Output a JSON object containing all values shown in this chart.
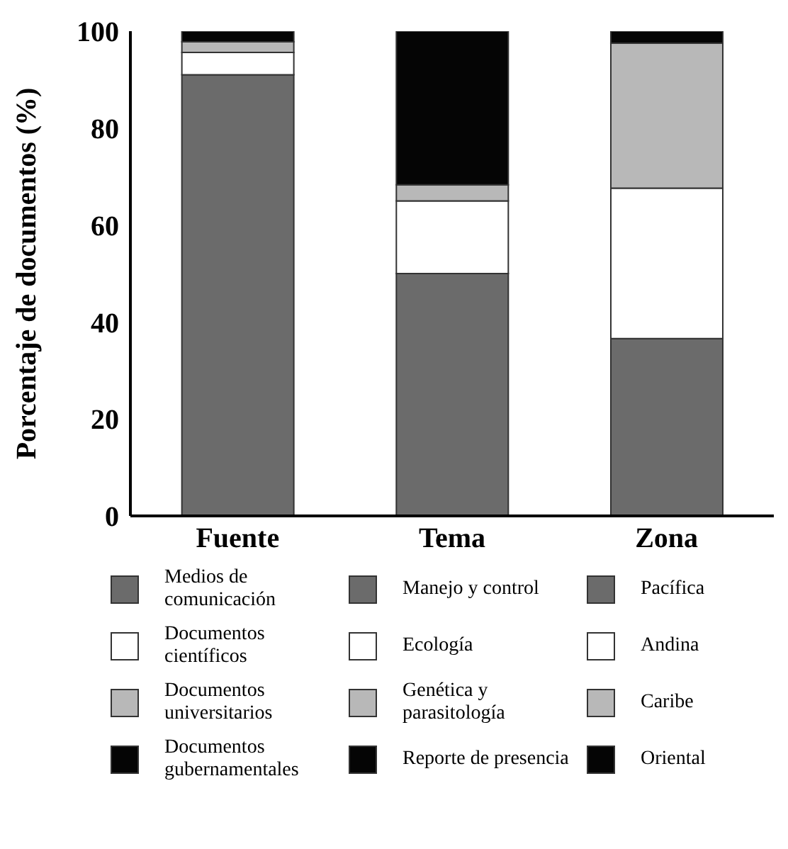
{
  "chart_data": {
    "type": "bar",
    "stacked": true,
    "ylabel": "Porcentaje de documentos (%)",
    "categories": [
      "Fuente",
      "Tema",
      "Zona"
    ],
    "ylim": [
      0,
      100
    ],
    "yticks": [
      0,
      20,
      40,
      60,
      80,
      100
    ],
    "grid": false,
    "legend": "bottom",
    "series": [
      {
        "name": "Medios de comunicación",
        "color": "#6b6b6b",
        "values": [
          91,
          null,
          null
        ]
      },
      {
        "name": "Manejo y control",
        "color": "#6b6b6b",
        "values": [
          null,
          50,
          null
        ]
      },
      {
        "name": "Pacífica",
        "color": "#6b6b6b",
        "values": [
          null,
          null,
          36.6
        ]
      },
      {
        "name": "Documentos científicos",
        "color": "#ffffff",
        "values": [
          4.6,
          null,
          null
        ]
      },
      {
        "name": "Ecología",
        "color": "#ffffff",
        "values": [
          null,
          15,
          null
        ]
      },
      {
        "name": "Andina",
        "color": "#ffffff",
        "values": [
          null,
          null,
          31
        ]
      },
      {
        "name": "Documentos universitarios",
        "color": "#b8b8b8",
        "values": [
          2.2,
          null,
          null
        ]
      },
      {
        "name": "Genética y parasitología",
        "color": "#b8b8b8",
        "values": [
          null,
          3.3,
          null
        ]
      },
      {
        "name": "Caribe",
        "color": "#b8b8b8",
        "values": [
          null,
          null,
          29.9
        ]
      },
      {
        "name": "Documentos gubernamentales",
        "color": "#050505",
        "values": [
          2.2,
          null,
          null
        ]
      },
      {
        "name": "Reporte de presencia",
        "color": "#050505",
        "values": [
          null,
          31.7,
          null
        ]
      },
      {
        "name": "Oriental",
        "color": "#050505",
        "values": [
          null,
          null,
          2.5
        ]
      }
    ]
  }
}
